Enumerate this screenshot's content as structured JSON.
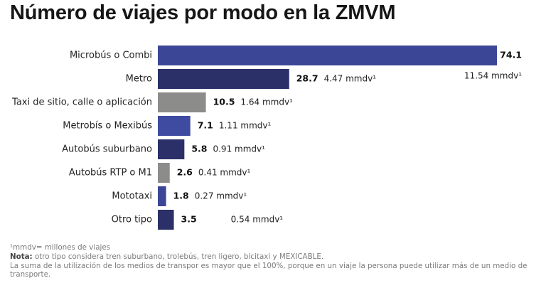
{
  "chart_data": {
    "type": "bar",
    "orientation": "horizontal",
    "title": "Número de viajes por modo en la ZMVM",
    "categories": [
      "Microbús o Combi",
      "Metro",
      "Taxi de sitio, calle o aplicación",
      "Metrobís o Mexibús",
      "Autobús suburbano",
      "Autobús RTP o M1",
      "Mototaxi",
      "Otro tipo"
    ],
    "values": [
      74.1,
      28.7,
      10.5,
      7.1,
      5.8,
      2.6,
      1.8,
      3.5
    ],
    "value_labels": [
      "74.1",
      "28.7",
      "10.5",
      "7.1",
      "5.8",
      "2.6",
      "1.8",
      "3.5"
    ],
    "secondary_labels": [
      "11.54 mmdv¹",
      "4.47 mmdv¹",
      "1.64 mmdv¹",
      "1.11 mmdv¹",
      "0.91 mmdv¹",
      "0.41 mmdv¹",
      "0.27 mmdv¹",
      "0.54 mmdv¹"
    ],
    "bar_colors": [
      "#3c4696",
      "#2b3068",
      "#8c8c8a",
      "#3f4ba0",
      "#2b3068",
      "#8c8c8a",
      "#3c4696",
      "#2b3068"
    ],
    "xlim": [
      0,
      74.1
    ],
    "grid": false,
    "legend": "none"
  },
  "footnotes": {
    "mmdv_def": "¹mmdv= millones de viajes",
    "nota_label": "Nota:",
    "nota_text": " otro tipo considera tren suburbano, trolebús, tren ligero, bicitaxi y MEXICABLE.",
    "suma": "La suma de la utilización de los medios de transpor es mayor que el 100%, porque en un viaje la persona puede utilizar más de un medio de transporte."
  }
}
